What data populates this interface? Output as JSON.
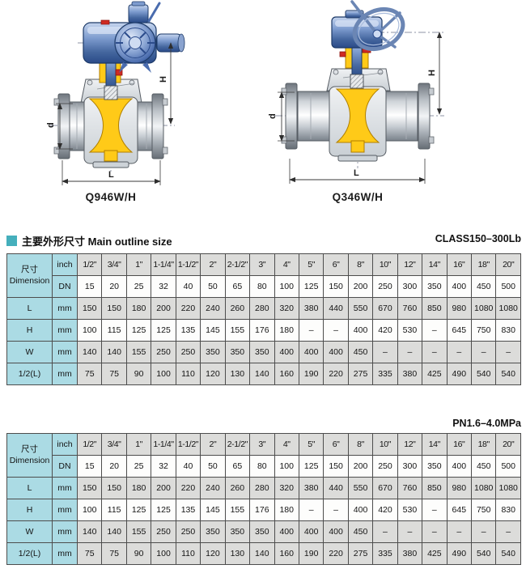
{
  "section": {
    "title": "主要外形尺寸 Main outline size",
    "accent_color": "#45afbc"
  },
  "drawings": {
    "left": {
      "caption": "Q946W/H",
      "type": "electric-actuator-trunnion-ball-valve",
      "dim_H": "H",
      "dim_d": "d",
      "dim_L": "L"
    },
    "right": {
      "caption": "Q346W/H",
      "type": "gear-handwheel-trunnion-ball-valve",
      "dim_H": "H",
      "dim_d": "d",
      "dim_L": "L"
    }
  },
  "tables": [
    {
      "pressure_label": "CLASS150–300Lb"
    },
    {
      "pressure_label": "PN1.6–4.0MPa"
    }
  ],
  "table_shared": {
    "corner_zh": "尺寸",
    "corner_en": "Dimension",
    "inch_label": "inch",
    "dn_label": "DN",
    "inch_sizes": [
      "1/2\"",
      "3/4\"",
      "1\"",
      "1-1/4\"",
      "1-1/2\"",
      "2\"",
      "2-1/2\"",
      "3\"",
      "4\"",
      "5\"",
      "6\"",
      "8\"",
      "10\"",
      "12\"",
      "14\"",
      "16\"",
      "18\"",
      "20\""
    ],
    "dn_values": [
      "15",
      "20",
      "25",
      "32",
      "40",
      "50",
      "65",
      "80",
      "100",
      "125",
      "150",
      "200",
      "250",
      "300",
      "350",
      "400",
      "450",
      "500"
    ],
    "rows": [
      {
        "label": "L",
        "unit": "mm",
        "shade": "gray",
        "values": [
          "150",
          "150",
          "180",
          "200",
          "220",
          "240",
          "260",
          "280",
          "320",
          "380",
          "440",
          "550",
          "670",
          "760",
          "850",
          "980",
          "1080",
          "1080"
        ]
      },
      {
        "label": "H",
        "unit": "mm",
        "shade": "white",
        "values": [
          "100",
          "115",
          "125",
          "125",
          "135",
          "145",
          "155",
          "176",
          "180",
          "–",
          "–",
          "400",
          "420",
          "530",
          "–",
          "645",
          "750",
          "830"
        ]
      },
      {
        "label": "W",
        "unit": "mm",
        "shade": "gray",
        "values": [
          "140",
          "140",
          "155",
          "250",
          "250",
          "350",
          "350",
          "350",
          "400",
          "400",
          "400",
          "450",
          "–",
          "–",
          "–",
          "–",
          "–",
          "–"
        ]
      },
      {
        "label": "1/2(L)",
        "unit": "mm",
        "shade": "gray",
        "values": [
          "75",
          "75",
          "90",
          "100",
          "110",
          "120",
          "130",
          "140",
          "160",
          "190",
          "220",
          "275",
          "335",
          "380",
          "425",
          "490",
          "540",
          "540"
        ]
      }
    ]
  },
  "colors": {
    "accent": "#45afbc",
    "header_blue": "#abdbe4",
    "row_gray": "#dcdcda",
    "row_white": "#fdfdfc",
    "table_border": "#4d4d4d",
    "actuator_blue": "#4a6cae",
    "ball_yellow": "#ffca18",
    "gland_red": "#cf2a23",
    "steel_gray": "#c4cad0"
  }
}
